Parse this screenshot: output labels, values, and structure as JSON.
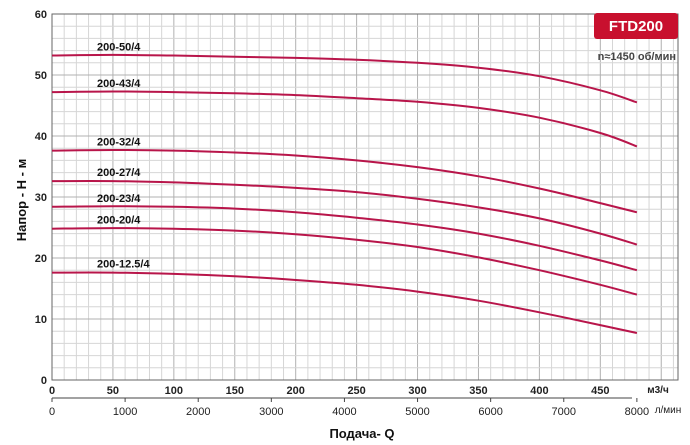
{
  "badge": {
    "label": "FTD200",
    "color": "#c8102e"
  },
  "speed_note": "n≈1450 об/мин",
  "curve_color": "#b8154a",
  "chart_data": {
    "type": "line",
    "title": "",
    "xlabel": "Подача- Q",
    "ylabel": "Напор - Н - м",
    "x_unit_primary": "м3/ч",
    "x_unit_secondary": "л/мин",
    "xlim": [
      0,
      500
    ],
    "ylim": [
      0,
      60
    ],
    "x_ticks_primary": [
      "0",
      "50",
      "100",
      "150",
      "200",
      "250",
      "300",
      "350",
      "400",
      "450"
    ],
    "x_ticks_secondary": [
      "0",
      "1000",
      "2000",
      "3000",
      "4000",
      "5000",
      "6000",
      "7000",
      "8000"
    ],
    "y_ticks": [
      "0",
      "10",
      "20",
      "30",
      "40",
      "50",
      "60"
    ],
    "grid": true,
    "x": [
      0,
      50,
      100,
      150,
      200,
      250,
      300,
      350,
      400,
      450,
      480
    ],
    "series": [
      {
        "name": "200-50/4",
        "values": [
          53.2,
          53.3,
          53.2,
          53.0,
          52.8,
          52.5,
          52.0,
          51.2,
          49.8,
          47.5,
          45.5
        ]
      },
      {
        "name": "200-43/4",
        "values": [
          47.2,
          47.3,
          47.2,
          47.0,
          46.7,
          46.2,
          45.6,
          44.6,
          43.0,
          40.5,
          38.3
        ]
      },
      {
        "name": "200-32/4",
        "values": [
          37.6,
          37.7,
          37.6,
          37.3,
          36.8,
          36.0,
          34.9,
          33.4,
          31.4,
          29.0,
          27.5
        ]
      },
      {
        "name": "200-27/4",
        "values": [
          32.6,
          32.6,
          32.4,
          32.0,
          31.5,
          30.8,
          29.7,
          28.3,
          26.5,
          24.0,
          22.2
        ]
      },
      {
        "name": "200-23/4",
        "values": [
          28.4,
          28.5,
          28.4,
          28.1,
          27.5,
          26.6,
          25.5,
          24.0,
          22.0,
          19.6,
          18.0
        ]
      },
      {
        "name": "200-20/4",
        "values": [
          24.8,
          24.9,
          24.8,
          24.5,
          23.9,
          23.0,
          21.8,
          20.1,
          18.0,
          15.6,
          14.0
        ]
      },
      {
        "name": "200-12.5/4",
        "values": [
          17.6,
          17.6,
          17.4,
          17.0,
          16.4,
          15.6,
          14.5,
          13.0,
          11.1,
          9.0,
          7.7
        ]
      }
    ]
  }
}
